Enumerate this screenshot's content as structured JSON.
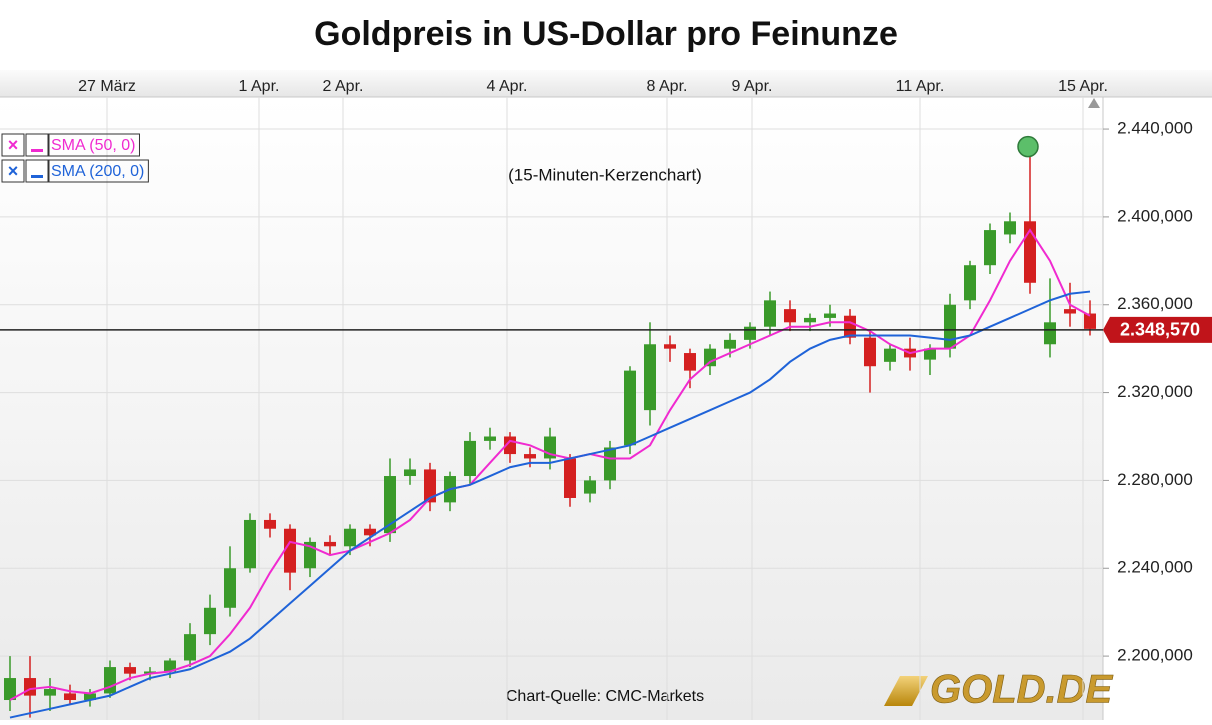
{
  "chart_data": {
    "type": "candlestick",
    "title": "Goldpreis in US-Dollar pro Feinunze",
    "subtitle": "(15-Minuten-Kerzenchart)",
    "source": "Chart-Quelle: CMC-Markets",
    "logo": "GOLD.DE",
    "grid": true,
    "xlim": [
      -0.5,
      54.5
    ],
    "xticks": [
      {
        "value": 4.85,
        "label": "27 März"
      },
      {
        "value": 12.45,
        "label": "1 Apr."
      },
      {
        "value": 16.65,
        "label": "2 Apr."
      },
      {
        "value": 24.85,
        "label": "4 Apr."
      },
      {
        "value": 32.85,
        "label": "8 Apr."
      },
      {
        "value": 37.1,
        "label": "9 Apr."
      },
      {
        "value": 45.5,
        "label": "11 Apr."
      },
      {
        "value": 53.65,
        "label": "15 Apr."
      }
    ],
    "ylim": [
      2170.9,
      2454.6
    ],
    "yticks": [
      {
        "value": 2200,
        "label": "2.200,000"
      },
      {
        "value": 2240,
        "label": "2.240,000"
      },
      {
        "value": 2280,
        "label": "2.280,000"
      },
      {
        "value": 2320,
        "label": "2.320,000"
      },
      {
        "value": 2360,
        "label": "2.360,000"
      },
      {
        "value": 2400,
        "label": "2.400,000"
      },
      {
        "value": 2440,
        "label": "2.440,000"
      }
    ],
    "candles": {
      "up_color": "#3a9a2a",
      "down_color": "#d42020",
      "open": [
        2180,
        2190,
        2182,
        2183,
        2180,
        2183,
        2195,
        2192,
        2193,
        2198,
        2210,
        2222,
        2240,
        2262,
        2258,
        2240,
        2252,
        2250,
        2258,
        2256,
        2282,
        2285,
        2270,
        2282,
        2298,
        2300,
        2292,
        2290,
        2290,
        2274,
        2280,
        2296,
        2312,
        2342,
        2338,
        2332,
        2340,
        2344,
        2350,
        2358,
        2352,
        2354,
        2355,
        2345,
        2334,
        2340,
        2335,
        2340,
        2362,
        2378,
        2392,
        2398,
        2342,
        2358,
        2356
      ],
      "high": [
        2200,
        2200,
        2190,
        2187,
        2185,
        2198,
        2197,
        2195,
        2199,
        2215,
        2228,
        2250,
        2265,
        2265,
        2260,
        2254,
        2255,
        2260,
        2260,
        2290,
        2290,
        2288,
        2284,
        2302,
        2304,
        2302,
        2295,
        2304,
        2292,
        2282,
        2298,
        2332,
        2352,
        2346,
        2340,
        2342,
        2347,
        2352,
        2366,
        2362,
        2356,
        2360,
        2358,
        2348,
        2342,
        2345,
        2342,
        2365,
        2380,
        2397,
        2402,
        2432,
        2372,
        2370,
        2362
      ],
      "low": [
        2175,
        2172,
        2175,
        2178,
        2177,
        2181,
        2189,
        2189,
        2190,
        2195,
        2205,
        2218,
        2238,
        2254,
        2230,
        2236,
        2246,
        2246,
        2250,
        2252,
        2278,
        2266,
        2266,
        2278,
        2294,
        2288,
        2286,
        2285,
        2268,
        2270,
        2276,
        2292,
        2305,
        2334,
        2322,
        2328,
        2336,
        2340,
        2346,
        2348,
        2348,
        2350,
        2342,
        2320,
        2330,
        2330,
        2328,
        2336,
        2358,
        2374,
        2388,
        2365,
        2336,
        2350,
        2346
      ],
      "close": [
        2190,
        2182,
        2185,
        2180,
        2183,
        2195,
        2192,
        2193,
        2198,
        2210,
        2222,
        2240,
        2262,
        2258,
        2238,
        2252,
        2250,
        2258,
        2255,
        2282,
        2285,
        2270,
        2282,
        2298,
        2300,
        2292,
        2290,
        2300,
        2272,
        2280,
        2295,
        2330,
        2342,
        2340,
        2330,
        2340,
        2344,
        2350,
        2362,
        2352,
        2354,
        2356,
        2345,
        2332,
        2340,
        2336,
        2340,
        2360,
        2378,
        2394,
        2398,
        2370,
        2352,
        2356,
        2349
      ]
    },
    "series": [
      {
        "name": "SMA (50, 0)",
        "color": "#f02ad0",
        "values": [
          2180,
          2185,
          2186,
          2184,
          2183,
          2186,
          2190,
          2192,
          2193,
          2196,
          2200,
          2210,
          2222,
          2238,
          2252,
          2250,
          2246,
          2248,
          2252,
          2256,
          2262,
          2272,
          2276,
          2278,
          2288,
          2298,
          2296,
          2292,
          2290,
          2292,
          2290,
          2290,
          2296,
          2312,
          2326,
          2334,
          2338,
          2342,
          2346,
          2350,
          2350,
          2352,
          2352,
          2348,
          2342,
          2338,
          2340,
          2340,
          2346,
          2362,
          2380,
          2394,
          2380,
          2360,
          2355
        ]
      },
      {
        "name": "SMA (200, 0)",
        "color": "#1f63d8",
        "values": [
          2172,
          2174,
          2176,
          2178,
          2180,
          2182,
          2186,
          2190,
          2192,
          2194,
          2198,
          2202,
          2208,
          2216,
          2224,
          2232,
          2240,
          2248,
          2254,
          2260,
          2266,
          2272,
          2276,
          2278,
          2282,
          2286,
          2288,
          2288,
          2290,
          2292,
          2294,
          2296,
          2300,
          2304,
          2308,
          2312,
          2316,
          2320,
          2326,
          2334,
          2340,
          2344,
          2346,
          2346,
          2346,
          2346,
          2345,
          2344,
          2346,
          2350,
          2354,
          2358,
          2362,
          2365,
          2366
        ]
      }
    ],
    "last_price": {
      "value": 2348.57,
      "label": "2.348,570"
    },
    "highlight": {
      "x": 50.9,
      "y": 2432,
      "color": "#5cbf6a"
    }
  }
}
